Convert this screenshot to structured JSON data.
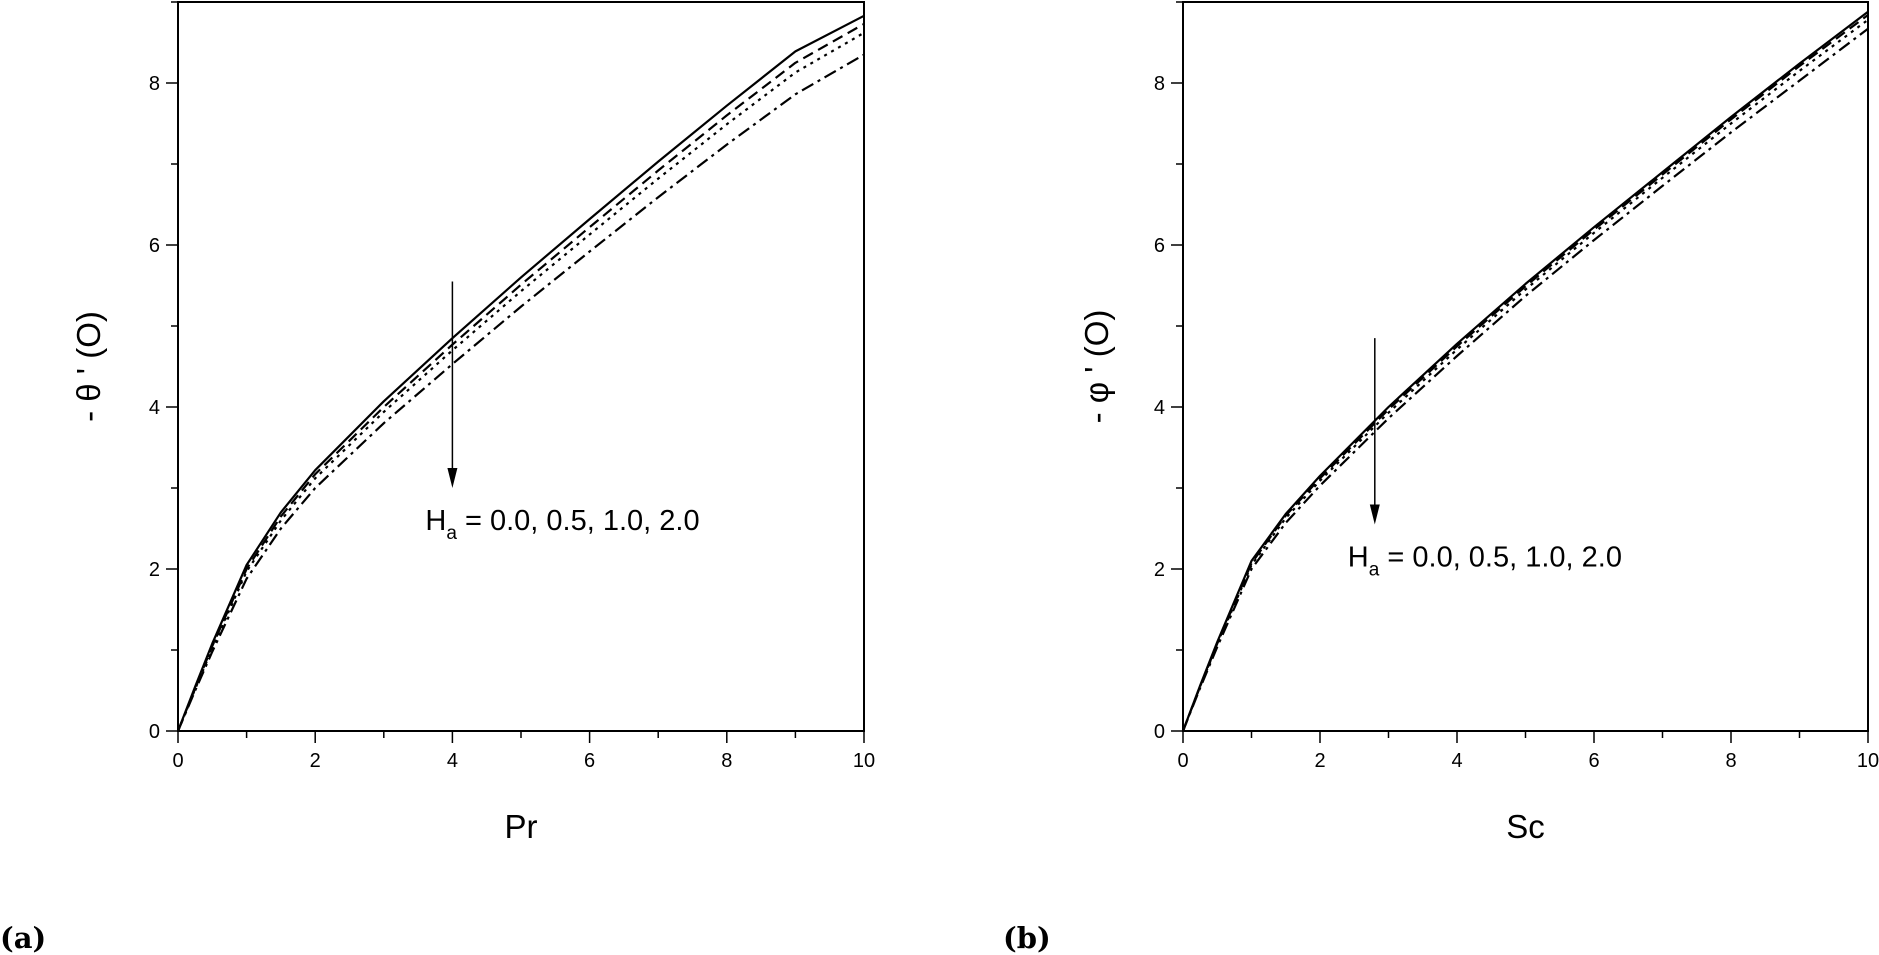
{
  "chart_data": [
    {
      "type": "line",
      "panel_label": "(a)",
      "xlabel": "Pr",
      "ylabel": "- θ ' (O)",
      "xlim": [
        0,
        10
      ],
      "ylim": [
        0,
        9
      ],
      "xticks": [
        "0",
        "2",
        "4",
        "6",
        "8",
        "10"
      ],
      "yticks": [
        "0",
        "2",
        "4",
        "6",
        "8"
      ],
      "annotation": {
        "main": "H",
        "sub": "a",
        "rest": " = 0.0, 0.5, 1.0, 2.0",
        "arrow_x": 4,
        "arrow_from": 5.55,
        "arrow_to": 3.0
      },
      "x": [
        0,
        0.25,
        0.5,
        1,
        1.5,
        2,
        3,
        4,
        5,
        6,
        7,
        8,
        9,
        10
      ],
      "series": [
        {
          "name": "H_a = 0.0",
          "style": "solid",
          "values": [
            0,
            0.55,
            1.08,
            2.05,
            2.7,
            3.22,
            4.07,
            4.85,
            5.6,
            6.32,
            7.03,
            7.72,
            8.39,
            8.83
          ]
        },
        {
          "name": "H_a = 0.5",
          "style": "dash",
          "values": [
            0,
            0.53,
            1.05,
            2.0,
            2.65,
            3.17,
            4.0,
            4.77,
            5.51,
            6.22,
            6.92,
            7.6,
            8.25,
            8.73
          ]
        },
        {
          "name": "H_a = 1.0",
          "style": "dot",
          "values": [
            0,
            0.52,
            1.02,
            1.97,
            2.6,
            3.12,
            3.94,
            4.7,
            5.43,
            6.13,
            6.82,
            7.49,
            8.13,
            8.62
          ]
        },
        {
          "name": "H_a = 2.0",
          "style": "dashdot",
          "values": [
            0,
            0.5,
            0.98,
            1.88,
            2.5,
            3.0,
            3.8,
            4.53,
            5.24,
            5.92,
            6.59,
            7.24,
            7.86,
            8.35
          ]
        }
      ]
    },
    {
      "type": "line",
      "panel_label": "(b)",
      "xlabel": "Sc",
      "ylabel": "- φ ' (O)",
      "xlim": [
        0,
        10
      ],
      "ylim": [
        0,
        9
      ],
      "xticks": [
        "0",
        "2",
        "4",
        "6",
        "8",
        "10"
      ],
      "yticks": [
        "0",
        "2",
        "4",
        "6",
        "8"
      ],
      "annotation": {
        "main": "H",
        "sub": "a",
        "rest": " = 0.0, 0.5, 1.0, 2.0",
        "arrow_x": 2.8,
        "arrow_from": 4.85,
        "arrow_to": 2.55
      },
      "x": [
        0,
        0.25,
        0.5,
        1,
        1.5,
        2,
        3,
        4,
        5,
        6,
        7,
        8,
        9,
        10
      ],
      "series": [
        {
          "name": "H_a = 0.0",
          "style": "solid",
          "values": [
            0,
            0.56,
            1.1,
            2.1,
            2.68,
            3.15,
            4.0,
            4.78,
            5.52,
            6.22,
            6.9,
            7.58,
            8.24,
            8.88
          ]
        },
        {
          "name": "H_a = 0.5",
          "style": "dash",
          "values": [
            0,
            0.55,
            1.08,
            2.07,
            2.66,
            3.12,
            3.97,
            4.75,
            5.49,
            6.19,
            6.87,
            7.55,
            8.21,
            8.84
          ]
        },
        {
          "name": "H_a = 1.0",
          "style": "dot",
          "values": [
            0,
            0.55,
            1.07,
            2.05,
            2.63,
            3.09,
            3.93,
            4.71,
            5.45,
            6.15,
            6.83,
            7.5,
            8.15,
            8.78
          ]
        },
        {
          "name": "H_a = 2.0",
          "style": "dashdot",
          "values": [
            0,
            0.53,
            1.04,
            2.0,
            2.57,
            3.03,
            3.86,
            4.63,
            5.37,
            6.06,
            6.73,
            7.39,
            8.03,
            8.67
          ]
        }
      ]
    }
  ]
}
